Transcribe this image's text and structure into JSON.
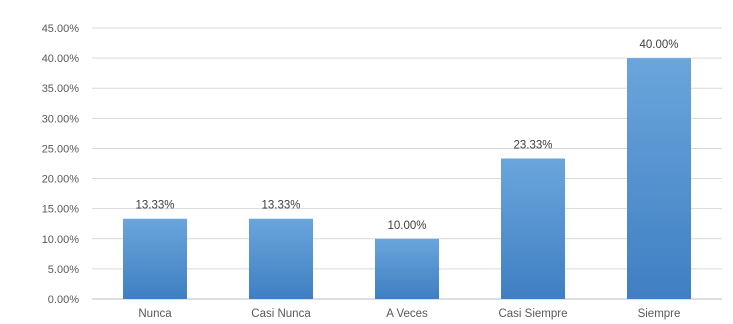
{
  "chart_data": {
    "type": "bar",
    "categories": [
      "Nunca",
      "Casi Nunca",
      "A Veces",
      "Casi Siempre",
      "Siempre"
    ],
    "values": [
      13.33,
      13.33,
      10.0,
      23.33,
      40.0
    ],
    "data_labels": [
      "13.33%",
      "13.33%",
      "10.00%",
      "23.33%",
      "40.00%"
    ],
    "y_ticks": [
      "0.00%",
      "5.00%",
      "10.00%",
      "15.00%",
      "20.00%",
      "25.00%",
      "30.00%",
      "35.00%",
      "40.00%",
      "45.00%"
    ],
    "ylim": [
      0,
      45
    ],
    "grid": true,
    "legend": "none",
    "bar_color": "#5b9bd5",
    "title": "",
    "xlabel": "",
    "ylabel": ""
  }
}
